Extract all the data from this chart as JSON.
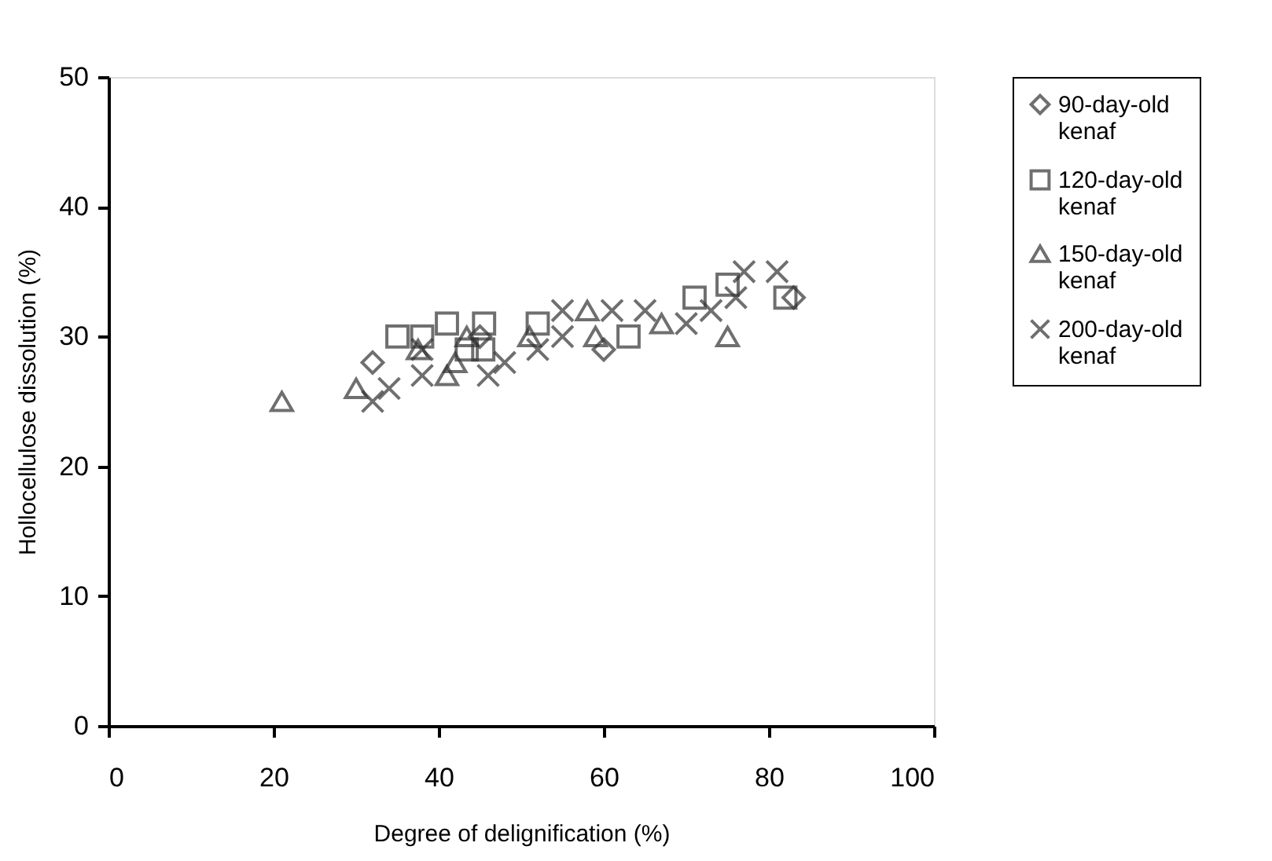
{
  "chart_data": {
    "type": "scatter",
    "xlabel": "Degree of delignification (%)",
    "ylabel": "Hollocellulose dissolution (%)",
    "xlim": [
      0,
      100
    ],
    "xticks": [
      0,
      20,
      40,
      60,
      80,
      100
    ],
    "ylim": [
      0,
      50
    ],
    "yticks": [
      0,
      10,
      20,
      30,
      40,
      50
    ],
    "grid": false,
    "legend": "right",
    "series": [
      {
        "name": "90-day-old kenaf",
        "color": "#333333",
        "marker": "diamond",
        "x": [
          32,
          45,
          60,
          83
        ],
        "values": [
          28,
          30,
          29,
          33
        ]
      },
      {
        "name": "120-day-old kenaf",
        "color": "#333333",
        "marker": "square",
        "x": [
          35,
          38,
          41,
          45.5,
          43.4,
          45.4,
          52,
          63,
          71,
          75,
          82
        ],
        "values": [
          30,
          30,
          31,
          31,
          29,
          29,
          31,
          30,
          33,
          34,
          33
        ]
      },
      {
        "name": "150-day-old kenaf",
        "color": "#333333",
        "marker": "triangle",
        "x": [
          21,
          30,
          37.5,
          41,
          42,
          43.4,
          51,
          58,
          59,
          67,
          75
        ],
        "values": [
          25,
          26,
          29,
          27,
          28,
          30,
          30,
          32,
          30,
          31,
          30
        ]
      },
      {
        "name": "200-day-old kenaf",
        "color": "#333333",
        "marker": "cross",
        "x": [
          32,
          34,
          38,
          38,
          46,
          48,
          52,
          55,
          55,
          61,
          65,
          70,
          73,
          76,
          77,
          81
        ],
        "values": [
          25,
          26,
          27,
          29,
          27,
          28,
          29,
          30,
          32,
          32,
          32,
          31,
          32,
          33,
          35,
          35
        ]
      }
    ]
  }
}
